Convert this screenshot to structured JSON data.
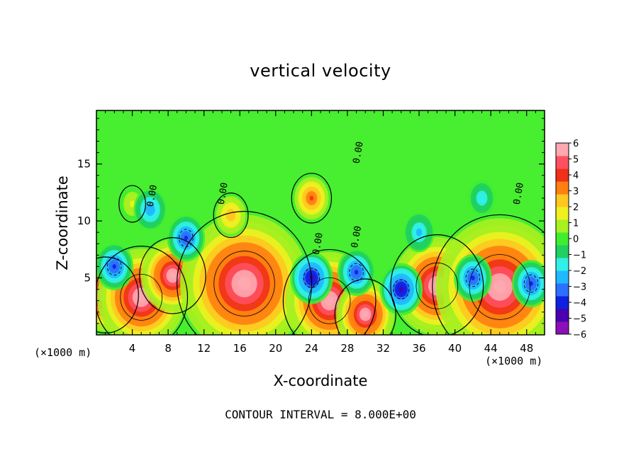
{
  "chart_data": {
    "type": "heatmap",
    "title": "vertical velocity",
    "xlabel": "X-coordinate",
    "ylabel": "Z-coordinate",
    "x_unit": "(×1000 m)",
    "x_unit_right": "(×1000 m)",
    "footer": "CONTOUR INTERVAL = 8.000E+00",
    "xlim": [
      0,
      50
    ],
    "ylim": [
      0,
      19.7
    ],
    "x_ticks": [
      4,
      8,
      12,
      16,
      20,
      24,
      28,
      32,
      36,
      40,
      44,
      48
    ],
    "y_ticks": [
      5,
      10,
      15
    ],
    "colorbar": {
      "min": -6,
      "max": 6,
      "ticks": [
        6,
        5,
        4,
        3,
        2,
        1,
        0,
        -1,
        -2,
        -3,
        -4,
        -5,
        -6
      ],
      "colors": [
        "#8a10b8",
        "#4a00b0",
        "#1020e0",
        "#2c70ff",
        "#20b8ff",
        "#30f0e8",
        "#20d060",
        "#40ee30",
        "#a8f020",
        "#f0f020",
        "#ffc820",
        "#ff8010",
        "#f03018",
        "#ff5060",
        "#ffa8b0"
      ]
    },
    "contour_labels": [
      "0.00",
      "0.00",
      "0.00",
      "0.00",
      "0.00",
      "0.00"
    ],
    "features": [
      {
        "x": 1,
        "z": 3.5,
        "w": 9
      },
      {
        "x": 5,
        "z": 3.3,
        "w": 14
      },
      {
        "x": 8.5,
        "z": 5.2,
        "w": 9
      },
      {
        "x": 16.5,
        "z": 4.5,
        "w": 22
      },
      {
        "x": 26,
        "z": 3.0,
        "w": 14
      },
      {
        "x": 30,
        "z": 1.8,
        "w": 8
      },
      {
        "x": 38,
        "z": 4.3,
        "w": 14
      },
      {
        "x": 45,
        "z": 4.2,
        "w": 22
      },
      {
        "x": 24,
        "z": 12.0,
        "w": 4
      },
      {
        "x": 4,
        "z": 11.5,
        "w": 1.5
      },
      {
        "x": 15,
        "z": 10.5,
        "w": 3
      },
      {
        "x": 6,
        "z": 11.0,
        "w": -3
      },
      {
        "x": 10,
        "z": 8.5,
        "w": -4
      },
      {
        "x": 24,
        "z": 5.0,
        "w": -5
      },
      {
        "x": 29,
        "z": 5.5,
        "w": -4
      },
      {
        "x": 34,
        "z": 4.0,
        "w": -5
      },
      {
        "x": 42,
        "z": 5.0,
        "w": -4
      },
      {
        "x": 48.5,
        "z": 4.5,
        "w": -4
      },
      {
        "x": 36,
        "z": 9.0,
        "w": -2.5
      },
      {
        "x": 43,
        "z": 12.0,
        "w": -2
      },
      {
        "x": 2,
        "z": 6.0,
        "w": -4
      }
    ]
  }
}
